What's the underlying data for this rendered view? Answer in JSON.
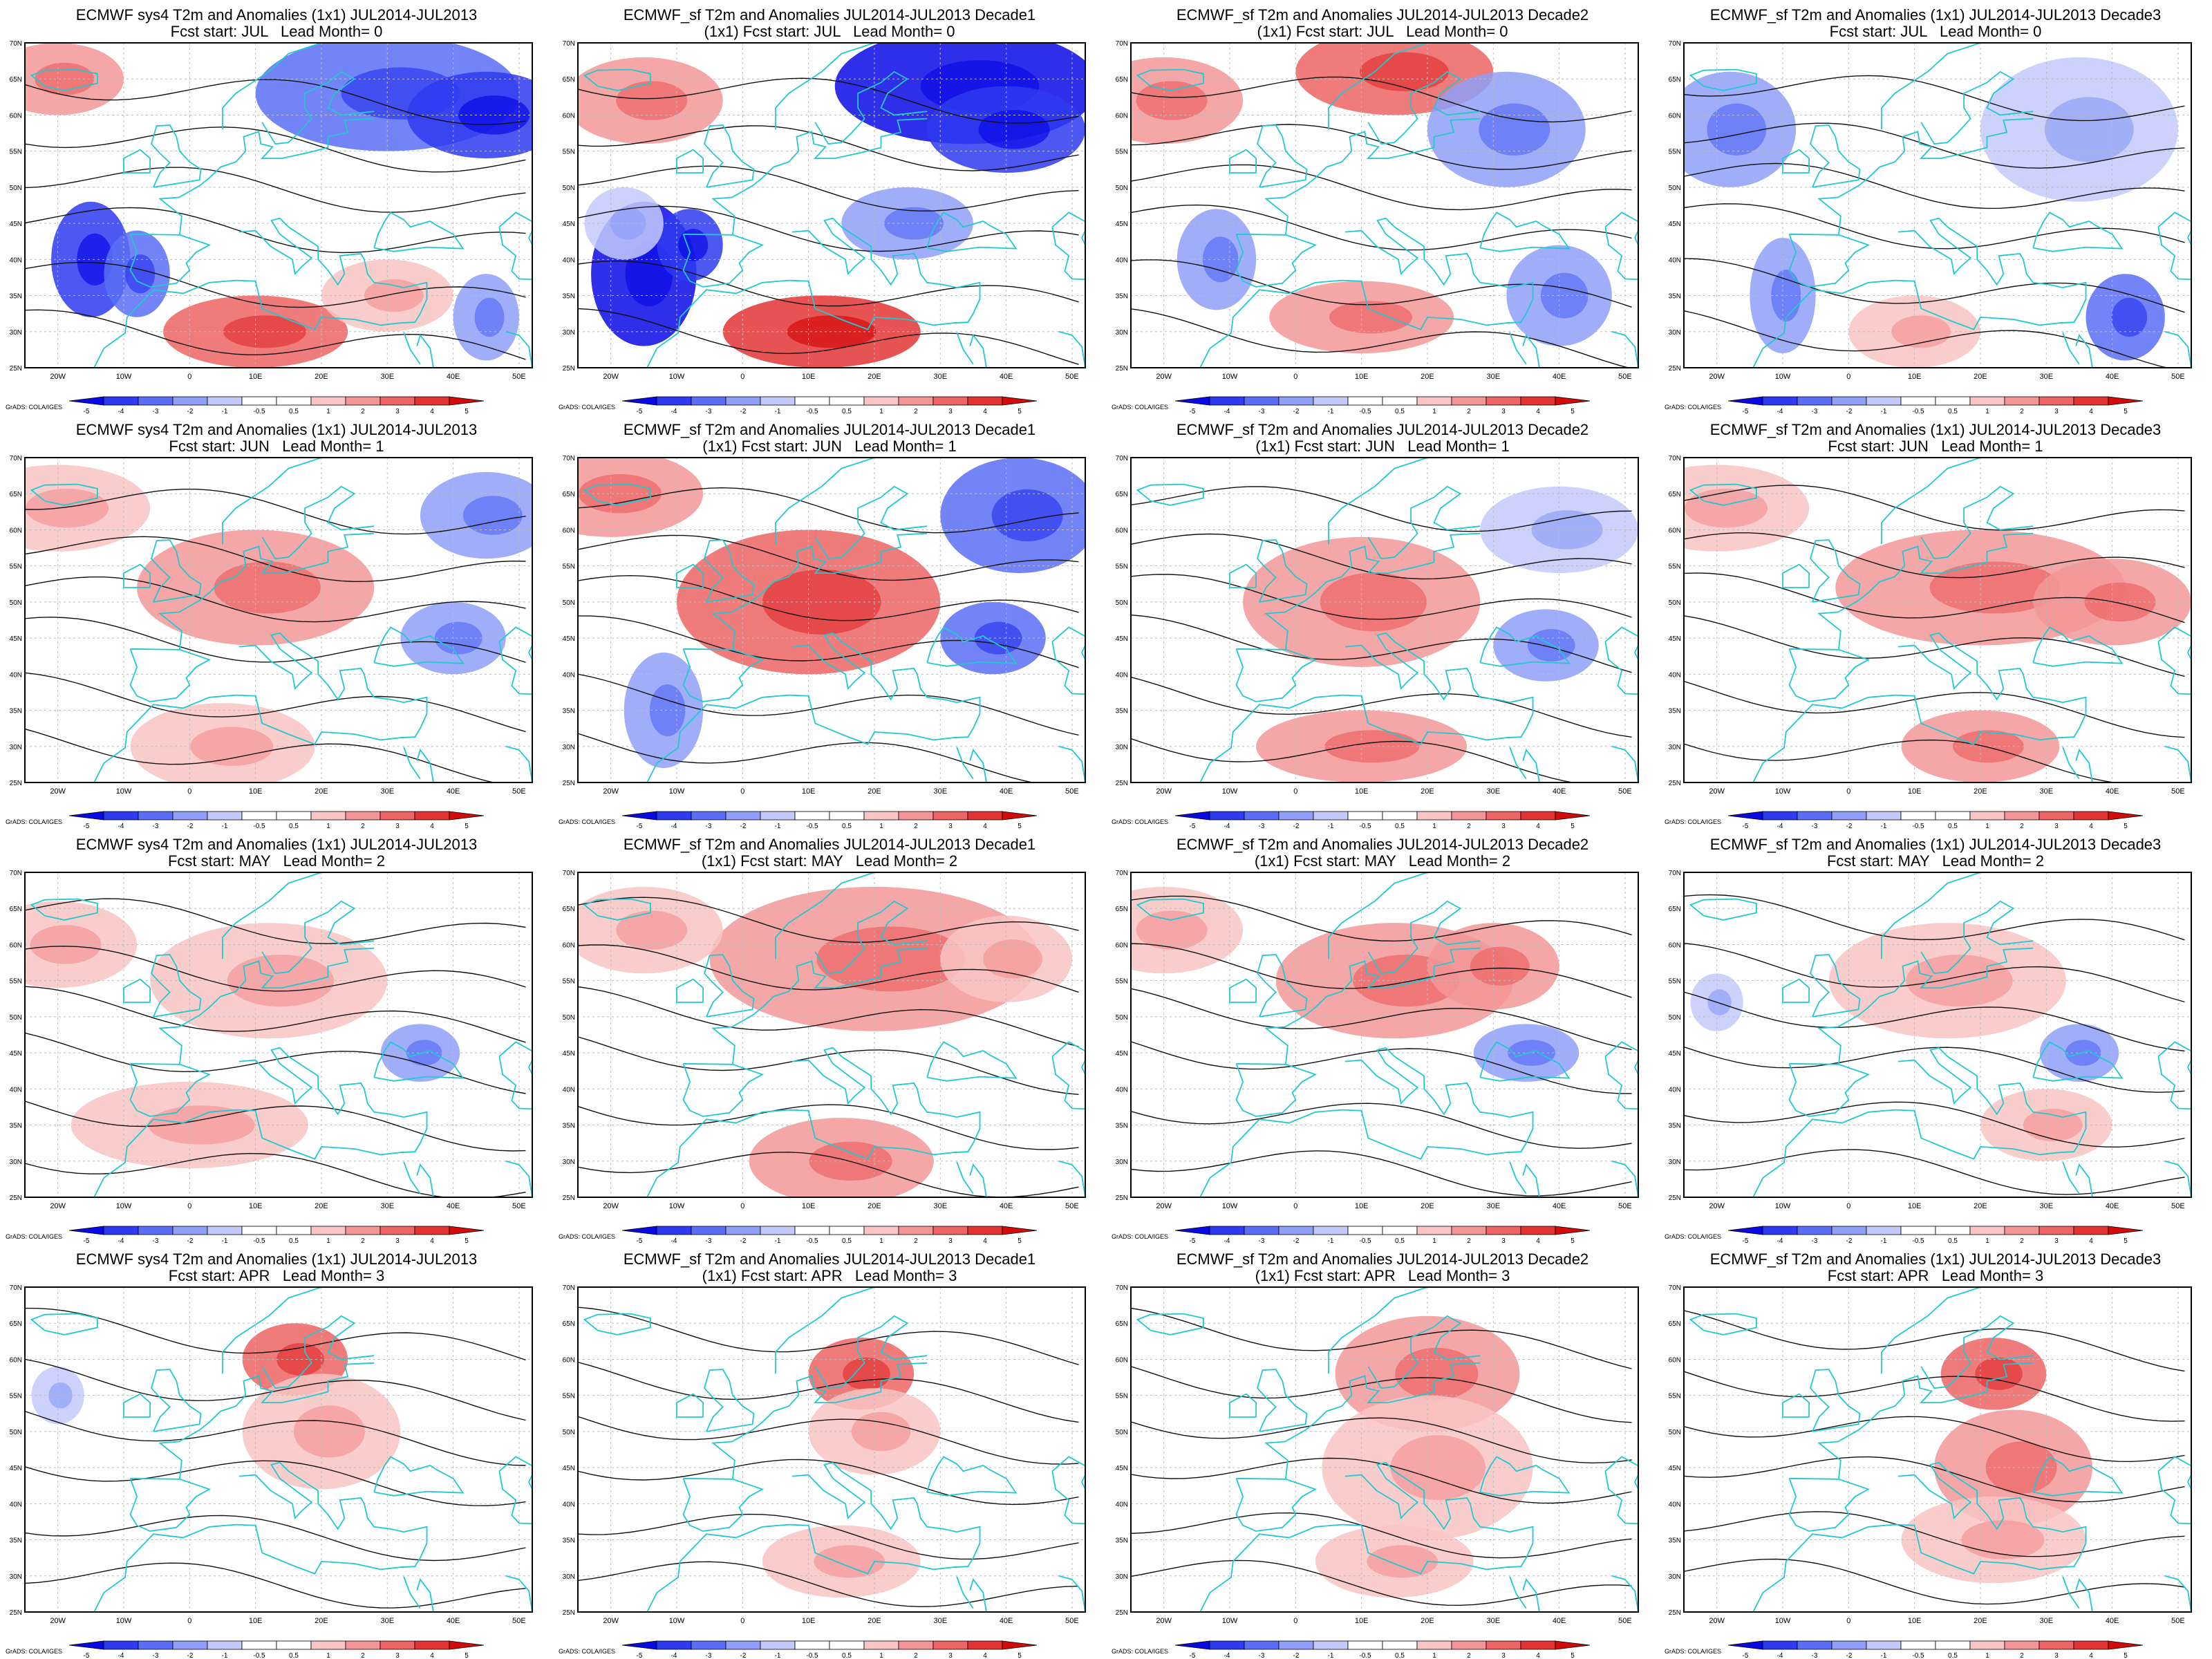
{
  "colors": {
    "coast": "#22c8d0",
    "contour": "#111111",
    "frame": "#000000",
    "grid": "#bbbbbb",
    "scale": [
      "#0a0ae6",
      "#2e3af0",
      "#5a6ef5",
      "#8f9ff8",
      "#c3cafb",
      "#ffffff",
      "#ffffff",
      "#f9c4c4",
      "#f39696",
      "#ec6464",
      "#e33434",
      "#d40b0b"
    ]
  },
  "map": {
    "lat_ticks": [
      "25N",
      "30N",
      "35N",
      "40N",
      "45N",
      "50N",
      "55N",
      "60N",
      "65N",
      "70N"
    ],
    "lon_ticks": [
      "20W",
      "10W",
      "0",
      "10E",
      "20E",
      "30E",
      "40E",
      "50E"
    ]
  },
  "colorbar": {
    "credit": "GrADS: COLA/IGES",
    "labels": [
      "-5",
      "-4",
      "-3",
      "-2",
      "-1",
      "-0.5",
      "0.5",
      "1",
      "2",
      "3",
      "4",
      "5"
    ]
  },
  "panels": [
    {
      "title": "ECMWF sys4 T2m and Anomalies (1x1) JUL2014-JUL2013",
      "subtitle": "Fcst start: JUL   Lead Month= 0"
    },
    {
      "title": "ECMWF_sf T2m and Anomalies JUL2014-JUL2013 Decade1",
      "subtitle": "(1x1) Fcst start: JUL   Lead Month= 0"
    },
    {
      "title": "ECMWF_sf T2m and Anomalies JUL2014-JUL2013 Decade2",
      "subtitle": "(1x1) Fcst start: JUL   Lead Month= 0"
    },
    {
      "title": "ECMWF_sf T2m and Anomalies (1x1) JUL2014-JUL2013 Decade3",
      "subtitle": "Fcst start: JUL   Lead Month= 0"
    },
    {
      "title": "ECMWF sys4 T2m and Anomalies (1x1) JUL2014-JUL2013",
      "subtitle": "Fcst start: JUN   Lead Month= 1"
    },
    {
      "title": "ECMWF_sf T2m and Anomalies JUL2014-JUL2013 Decade1",
      "subtitle": "(1x1) Fcst start: JUN   Lead Month= 1"
    },
    {
      "title": "ECMWF_sf T2m and Anomalies JUL2014-JUL2013 Decade2",
      "subtitle": "(1x1) Fcst start: JUN   Lead Month= 1"
    },
    {
      "title": "ECMWF_sf T2m and Anomalies (1x1) JUL2014-JUL2013 Decade3",
      "subtitle": "Fcst start: JUN   Lead Month= 1"
    },
    {
      "title": "ECMWF sys4 T2m and Anomalies (1x1) JUL2014-JUL2013",
      "subtitle": "Fcst start: MAY   Lead Month= 2"
    },
    {
      "title": "ECMWF_sf T2m and Anomalies JUL2014-JUL2013 Decade1",
      "subtitle": "(1x1) Fcst start: MAY   Lead Month= 2"
    },
    {
      "title": "ECMWF_sf T2m and Anomalies JUL2014-JUL2013 Decade2",
      "subtitle": "(1x1) Fcst start: MAY   Lead Month= 2"
    },
    {
      "title": "ECMWF_sf T2m and Anomalies (1x1) JUL2014-JUL2013 Decade3",
      "subtitle": "Fcst start: MAY   Lead Month= 2"
    },
    {
      "title": "ECMWF sys4 T2m and Anomalies (1x1) JUL2014-JUL2013",
      "subtitle": "Fcst start: APR   Lead Month= 3"
    },
    {
      "title": "ECMWF_sf T2m and Anomalies JUL2014-JUL2013 Decade1",
      "subtitle": "(1x1) Fcst start: APR   Lead Month= 3"
    },
    {
      "title": "ECMWF_sf T2m and Anomalies JUL2014-JUL2013 Decade2",
      "subtitle": "(1x1) Fcst start: APR   Lead Month= 3"
    },
    {
      "title": "ECMWF_sf T2m and Anomalies (1x1) JUL2014-JUL2013 Decade3",
      "subtitle": "Fcst start: APR   Lead Month= 3"
    }
  ]
}
